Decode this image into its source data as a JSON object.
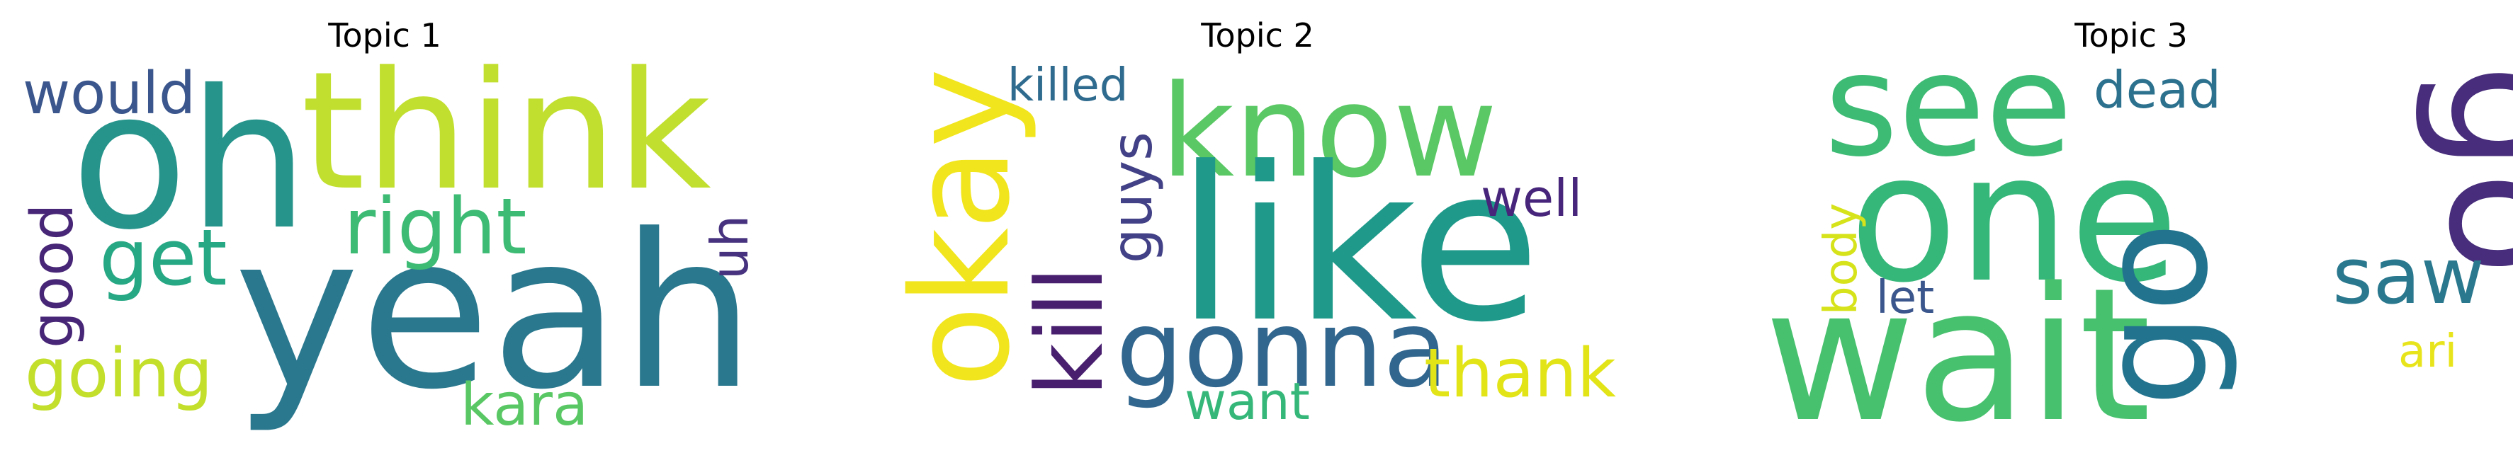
{
  "panels": [
    {
      "title": "Topic 1",
      "words": [
        {
          "text": "oh",
          "color": "#26948b"
        },
        {
          "text": "think",
          "color": "#c1df2f"
        },
        {
          "text": "yeah",
          "color": "#2a788e"
        },
        {
          "text": "would",
          "color": "#3a568c"
        },
        {
          "text": "right",
          "color": "#3dbb74"
        },
        {
          "text": "get",
          "color": "#27a884"
        },
        {
          "text": "good",
          "color": "#482677"
        },
        {
          "text": "uh",
          "color": "#46327e"
        },
        {
          "text": "going",
          "color": "#c3de2b"
        },
        {
          "text": "kara",
          "color": "#59c864"
        }
      ]
    },
    {
      "title": "Topic 2",
      "words": [
        {
          "text": "okay",
          "color": "#f1e51d"
        },
        {
          "text": "killed",
          "color": "#2f6b8e"
        },
        {
          "text": "know",
          "color": "#5ac864"
        },
        {
          "text": "guys",
          "color": "#424086"
        },
        {
          "text": "kill",
          "color": "#481e6f"
        },
        {
          "text": "like",
          "color": "#1f9a8a"
        },
        {
          "text": "well",
          "color": "#46257a"
        },
        {
          "text": "gonna",
          "color": "#31668e"
        },
        {
          "text": "want",
          "color": "#35b779"
        },
        {
          "text": "thank",
          "color": "#e2e418"
        }
      ]
    },
    {
      "title": "Topic 3",
      "words": [
        {
          "text": "see",
          "color": "#3dbb74"
        },
        {
          "text": "dead",
          "color": "#2c718e"
        },
        {
          "text": "go",
          "color": "#472d7b"
        },
        {
          "text": "one",
          "color": "#35b779"
        },
        {
          "text": "body",
          "color": "#d6e21a"
        },
        {
          "text": "let",
          "color": "#3a568c"
        },
        {
          "text": "saw",
          "color": "#2a788e"
        },
        {
          "text": "wait",
          "color": "#48c16e"
        },
        {
          "text": "go",
          "color": "#22738e"
        },
        {
          "text": "ari",
          "color": "#e8e41c"
        }
      ]
    }
  ]
}
